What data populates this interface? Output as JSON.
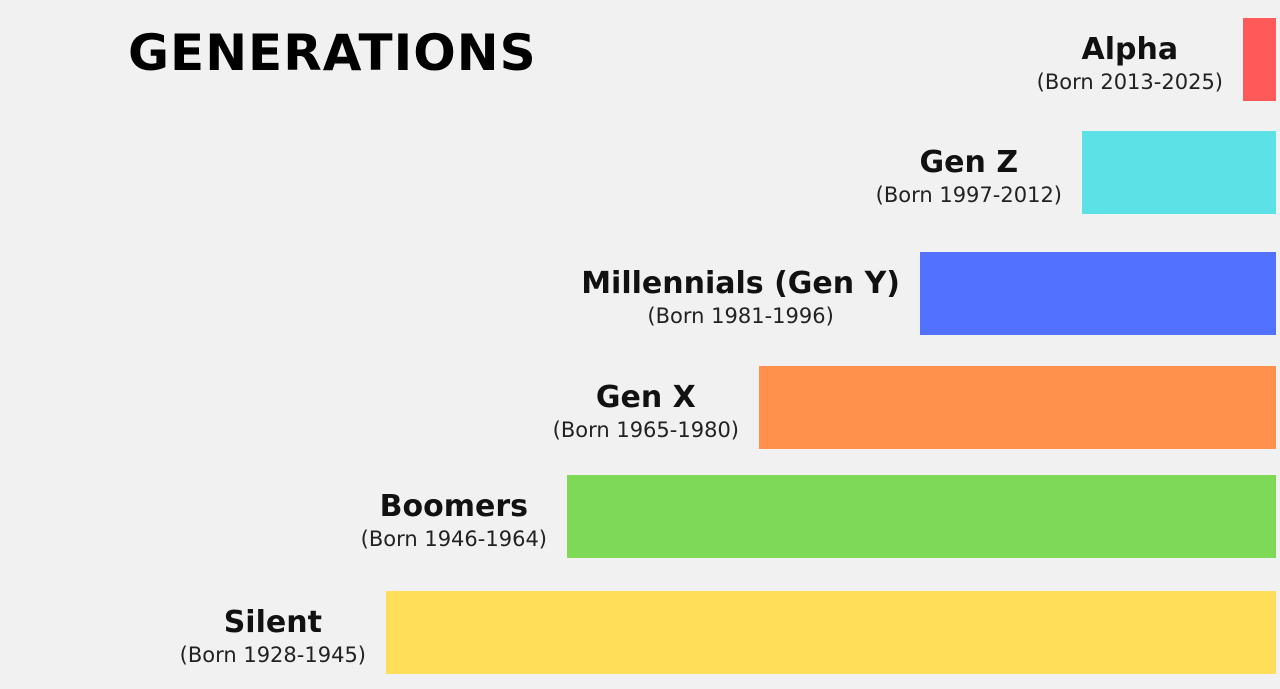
{
  "chart_data": {
    "type": "bar",
    "title": "GENERATIONS",
    "categories": [
      "Alpha",
      "Gen Z",
      "Millennials (Gen Y)",
      "Gen X",
      "Boomers",
      "Silent"
    ],
    "subtitles": [
      "(Born 2013-2025)",
      "(Born 1997-2012)",
      "(Born 1981-1996)",
      "(Born 1965-1980)",
      "(Born 1946-1964)",
      "(Born 1928-1945)"
    ],
    "birth_start": [
      2013,
      1997,
      1981,
      1965,
      1946,
      1928
    ],
    "birth_end": [
      2025,
      2012,
      1996,
      1980,
      1964,
      1945
    ],
    "colors": [
      "#ff5a5a",
      "#5ce1e6",
      "#5271ff",
      "#ff914d",
      "#7ed957",
      "#ffde59"
    ],
    "orientation": "horizontal, right-aligned",
    "grid": false,
    "legend": "none"
  }
}
